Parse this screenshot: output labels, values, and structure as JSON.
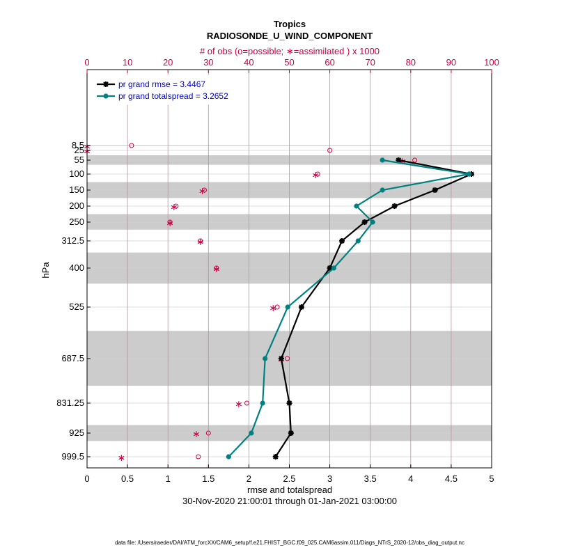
{
  "chart_data": {
    "type": "line",
    "title": "Tropics",
    "subtitle": "RADIOSONDE_U_WIND_COMPONENT",
    "top_axis_label": "# of obs (o=possible; ∗=assimilated ) x 1000",
    "xlabel": "rmse and totalspread",
    "ylabel": "hPa",
    "date_range": "30-Nov-2020 21:00:01 through 01-Jan-2021 03:00:00",
    "footer": "data file: /Users/raeder/DAI/ATM_forcXX/CAM6_setup/f.e21.FHIST_BGC.f09_025.CAM6assim.011/Diags_NTrS_2020-12/obs_diag_output.nc",
    "xlim": [
      0,
      5
    ],
    "x_ticks": [
      "0",
      "0.5",
      "1",
      "1.5",
      "2",
      "2.5",
      "3",
      "3.5",
      "4",
      "4.5",
      "5"
    ],
    "top_xlim": [
      0,
      100
    ],
    "top_ticks": [
      "0",
      "10",
      "20",
      "30",
      "40",
      "50",
      "60",
      "70",
      "80",
      "90",
      "100"
    ],
    "levels": [
      "8.5",
      "25",
      "55",
      "100",
      "150",
      "200",
      "250",
      "312.5",
      "400",
      "525",
      "687.5",
      "831.25",
      "925",
      "999.5"
    ],
    "shaded_bands": [
      [
        7,
        10
      ],
      [
        40,
        70
      ],
      [
        125,
        175
      ],
      [
        225,
        275
      ],
      [
        350,
        450
      ],
      [
        600,
        775
      ],
      [
        900,
        950
      ]
    ],
    "series": [
      {
        "name": "pr grand rmse = 3.4467",
        "color": "#000000",
        "marker": "star",
        "values": [
          null,
          null,
          3.85,
          4.75,
          4.3,
          3.8,
          3.43,
          3.15,
          3.0,
          2.65,
          2.4,
          2.5,
          2.52,
          2.33
        ]
      },
      {
        "name": "pr grand totalspread = 3.2652",
        "color": "#008080",
        "marker": "circle",
        "values": [
          null,
          null,
          3.65,
          4.72,
          3.65,
          3.33,
          3.53,
          3.35,
          3.05,
          2.48,
          2.2,
          2.17,
          2.03,
          1.75
        ]
      }
    ],
    "obs_possible": [
      11,
      60,
      81,
      57,
      29,
      22,
      20.5,
      28,
      32,
      47,
      49.5,
      39.5,
      30,
      27.5
    ],
    "obs_assimilated": [
      0,
      0,
      78,
      56.5,
      28.5,
      21.5,
      20.5,
      28,
      32,
      46,
      48,
      37.5,
      27,
      8.5
    ]
  }
}
